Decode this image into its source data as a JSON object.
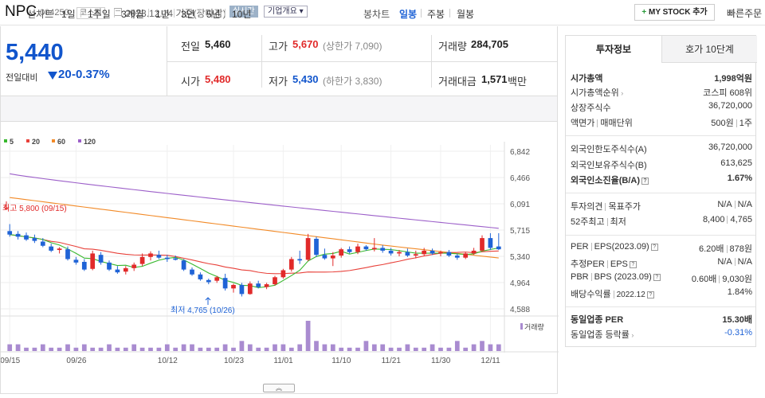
{
  "header": {
    "stock_name": "NPC",
    "stock_code": "004250",
    "market": "코스피",
    "date_text": "2023.12.14 기준(장마감)",
    "realtime_label": "실시간",
    "company_label": "기업개요 ▾",
    "mystock_label": "MY STOCK 추가",
    "quick_order_label": "빠른주문"
  },
  "price": {
    "current": "5,440",
    "prev_label": "전일대비",
    "change": "20",
    "change_pct": "-0.37%",
    "prev_close_label": "전일",
    "prev_close": "5,460",
    "high_label": "고가",
    "high": "5,670",
    "upper_limit": "(상한가 7,090)",
    "volume_label": "거래량",
    "volume": "284,705",
    "open_label": "시가",
    "open": "5,480",
    "low_label": "저가",
    "low": "5,430",
    "lower_limit": "(하한가 3,830)",
    "amount_label": "거래대금",
    "amount": "1,571",
    "amount_unit": "백만"
  },
  "period": {
    "line_label": "선차트",
    "line_items": [
      "1일",
      "1주일",
      "3개월",
      "1년",
      "3년",
      "5년",
      "10년"
    ],
    "candle_label": "봉차트",
    "candle_items": [
      "일봉",
      "주봉",
      "월봉"
    ]
  },
  "colors": {
    "up": "#e12a2a",
    "down": "#1f63d6",
    "ma5": "#38b82e",
    "ma20": "#e8413a",
    "ma60": "#f28a27",
    "ma120": "#9c5fc9"
  },
  "chart_data": {
    "type": "candlestick",
    "legend": [
      "5",
      "20",
      "60",
      "120"
    ],
    "y_ticks": [
      "6,842",
      "6,466",
      "6,091",
      "5,715",
      "5,340",
      "4,964",
      "4,588"
    ],
    "ylim": [
      4588,
      6842
    ],
    "x_ticks": [
      "09/15",
      "09/26",
      "10/12",
      "10/23",
      "11/01",
      "11/10",
      "11/21",
      "11/30",
      "12/11"
    ],
    "high_annotation": "최고 5,800 (09/15)",
    "low_annotation": "최저 4,765 (10/26)",
    "volume_label": "거래량",
    "candles": [
      {
        "o": 5700,
        "h": 5800,
        "l": 5620,
        "c": 5650
      },
      {
        "o": 5660,
        "h": 5700,
        "l": 5580,
        "c": 5620
      },
      {
        "o": 5640,
        "h": 5680,
        "l": 5560,
        "c": 5580
      },
      {
        "o": 5600,
        "h": 5650,
        "l": 5530,
        "c": 5560
      },
      {
        "o": 5550,
        "h": 5600,
        "l": 5470,
        "c": 5490
      },
      {
        "o": 5480,
        "h": 5520,
        "l": 5400,
        "c": 5420
      },
      {
        "o": 5430,
        "h": 5470,
        "l": 5380,
        "c": 5450
      },
      {
        "o": 5440,
        "h": 5480,
        "l": 5280,
        "c": 5300
      },
      {
        "o": 5290,
        "h": 5330,
        "l": 5220,
        "c": 5250
      },
      {
        "o": 5260,
        "h": 5300,
        "l": 5130,
        "c": 5150
      },
      {
        "o": 5160,
        "h": 5420,
        "l": 5140,
        "c": 5380
      },
      {
        "o": 5360,
        "h": 5400,
        "l": 5220,
        "c": 5250
      },
      {
        "o": 5250,
        "h": 5280,
        "l": 5130,
        "c": 5150
      },
      {
        "o": 5150,
        "h": 5200,
        "l": 5090,
        "c": 5110
      },
      {
        "o": 5120,
        "h": 5200,
        "l": 5080,
        "c": 5170
      },
      {
        "o": 5170,
        "h": 5250,
        "l": 5130,
        "c": 5220
      },
      {
        "o": 5230,
        "h": 5380,
        "l": 5200,
        "c": 5330
      },
      {
        "o": 5330,
        "h": 5410,
        "l": 5280,
        "c": 5380
      },
      {
        "o": 5360,
        "h": 5420,
        "l": 5300,
        "c": 5320
      },
      {
        "o": 5320,
        "h": 5360,
        "l": 5260,
        "c": 5300
      },
      {
        "o": 5310,
        "h": 5350,
        "l": 5280,
        "c": 5290
      },
      {
        "o": 5280,
        "h": 5300,
        "l": 5130,
        "c": 5150
      },
      {
        "o": 5150,
        "h": 5180,
        "l": 5060,
        "c": 5080
      },
      {
        "o": 5080,
        "h": 5110,
        "l": 4990,
        "c": 5010
      },
      {
        "o": 5000,
        "h": 5020,
        "l": 4940,
        "c": 4970
      },
      {
        "o": 4990,
        "h": 5060,
        "l": 4960,
        "c": 5040
      },
      {
        "o": 5030,
        "h": 5090,
        "l": 4850,
        "c": 4880
      },
      {
        "o": 4880,
        "h": 4950,
        "l": 4820,
        "c": 4930
      },
      {
        "o": 4930,
        "h": 4960,
        "l": 4765,
        "c": 4800
      },
      {
        "o": 4800,
        "h": 4980,
        "l": 4790,
        "c": 4950
      },
      {
        "o": 4950,
        "h": 4990,
        "l": 4880,
        "c": 4900
      },
      {
        "o": 4900,
        "h": 4960,
        "l": 4870,
        "c": 4940
      },
      {
        "o": 4940,
        "h": 5060,
        "l": 4920,
        "c": 5040
      },
      {
        "o": 5040,
        "h": 5160,
        "l": 5020,
        "c": 5140
      },
      {
        "o": 5150,
        "h": 5330,
        "l": 5120,
        "c": 5300
      },
      {
        "o": 5300,
        "h": 5420,
        "l": 5230,
        "c": 5280
      },
      {
        "o": 5290,
        "h": 5660,
        "l": 5270,
        "c": 5600
      },
      {
        "o": 5590,
        "h": 5620,
        "l": 5330,
        "c": 5360
      },
      {
        "o": 5360,
        "h": 5450,
        "l": 5290,
        "c": 5310
      },
      {
        "o": 5310,
        "h": 5400,
        "l": 5200,
        "c": 5350
      },
      {
        "o": 5350,
        "h": 5460,
        "l": 5320,
        "c": 5440
      },
      {
        "o": 5440,
        "h": 5480,
        "l": 5380,
        "c": 5400
      },
      {
        "o": 5400,
        "h": 5520,
        "l": 5370,
        "c": 5480
      },
      {
        "o": 5480,
        "h": 5500,
        "l": 5420,
        "c": 5440
      },
      {
        "o": 5440,
        "h": 5600,
        "l": 5410,
        "c": 5460
      },
      {
        "o": 5460,
        "h": 5500,
        "l": 5390,
        "c": 5420
      },
      {
        "o": 5420,
        "h": 5460,
        "l": 5350,
        "c": 5380
      },
      {
        "o": 5380,
        "h": 5430,
        "l": 5340,
        "c": 5400
      },
      {
        "o": 5400,
        "h": 5450,
        "l": 5330,
        "c": 5350
      },
      {
        "o": 5350,
        "h": 5420,
        "l": 5310,
        "c": 5370
      },
      {
        "o": 5370,
        "h": 5460,
        "l": 5350,
        "c": 5420
      },
      {
        "o": 5420,
        "h": 5450,
        "l": 5360,
        "c": 5380
      },
      {
        "o": 5380,
        "h": 5420,
        "l": 5340,
        "c": 5400
      },
      {
        "o": 5400,
        "h": 5430,
        "l": 5330,
        "c": 5350
      },
      {
        "o": 5350,
        "h": 5380,
        "l": 5290,
        "c": 5320
      },
      {
        "o": 5320,
        "h": 5400,
        "l": 5300,
        "c": 5380
      },
      {
        "o": 5380,
        "h": 5460,
        "l": 5360,
        "c": 5420
      },
      {
        "o": 5420,
        "h": 5640,
        "l": 5410,
        "c": 5600
      },
      {
        "o": 5600,
        "h": 5670,
        "l": 5430,
        "c": 5460
      },
      {
        "o": 5480,
        "h": 5670,
        "l": 5430,
        "c": 5440
      }
    ],
    "volumes": [
      2,
      2,
      1,
      1,
      2,
      1,
      1,
      2,
      1,
      2,
      1,
      1,
      2,
      1,
      1,
      2,
      1,
      1,
      1,
      2,
      1,
      2,
      2,
      1,
      1,
      1,
      2,
      1,
      3,
      2,
      1,
      1,
      2,
      2,
      1,
      2,
      9,
      3,
      2,
      2,
      1,
      1,
      1,
      3,
      2,
      2,
      1,
      1,
      2,
      1,
      1,
      2,
      1,
      1,
      3,
      1,
      2,
      3,
      2,
      2
    ]
  },
  "invest": {
    "tab_active": "투자정보",
    "tab_other": "호가 10단계",
    "market_cap_label": "시가총액",
    "market_cap": "1,998억원",
    "cap_rank_label": "시가총액순위",
    "cap_rank": "코스피 608위",
    "shares_label": "상장주식수",
    "shares": "36,720,000",
    "par_label": "액면가",
    "trade_unit_label": "매매단위",
    "par": "500원",
    "trade_unit": "1주",
    "foreign_limit_label": "외국인한도주식수(A)",
    "foreign_limit": "36,720,000",
    "foreign_hold_label": "외국인보유주식수(B)",
    "foreign_hold": "613,625",
    "foreign_rate_label": "외국인소진율(B/A)",
    "foreign_rate": "1.67%",
    "opinion_label": "투자의견",
    "target_label": "목표주가",
    "opinion": "N/A",
    "target": "N/A",
    "w52_label": "52주최고",
    "w52_low_label": "최저",
    "w52_high": "8,400",
    "w52_low": "4,765",
    "per_label": "PER",
    "eps_label": "EPS(2023.09)",
    "per": "6.20배",
    "eps": "878원",
    "est_per_label": "추정PER",
    "est_eps_label": "EPS",
    "est_per": "N/A",
    "est_eps": "N/A",
    "pbr_label": "PBR",
    "bps_label": "BPS (2023.09)",
    "pbr": "0.60배",
    "bps": "9,030원",
    "div_label": "배당수익률",
    "div_date": "2022.12",
    "div": "1.84%",
    "sector_per_label": "동일업종 PER",
    "sector_per": "15.30배",
    "sector_rate_label": "동일업종 등락률",
    "sector_rate": "-0.31%"
  }
}
